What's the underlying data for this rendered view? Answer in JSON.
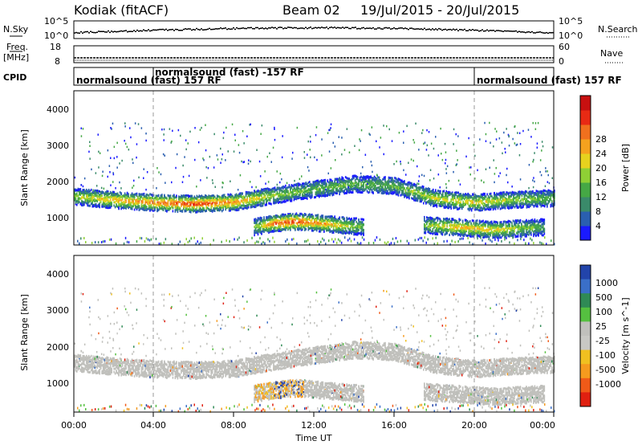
{
  "header": {
    "radar": "Kodiak (fitACF)",
    "beam": "Beam 02",
    "dates": "19/Jul/2015 - 20/Jul/2015"
  },
  "noise_panel": {
    "left_label": "N.Sky",
    "right_label": "N.Search",
    "left_ticks": [
      "10^5",
      "10^0"
    ],
    "right_ticks": [
      "10^5",
      "10^0"
    ]
  },
  "freq_panel": {
    "left_label_1": "Freq.",
    "left_label_2": "[MHz]",
    "right_label": "Nave",
    "left_ticks": [
      "18",
      "8"
    ],
    "right_ticks": [
      "60",
      "0"
    ]
  },
  "cpid_panel": {
    "label": "CPID",
    "segments": [
      {
        "start": 0,
        "end": 4,
        "text": "normalsound (fast) 157 RF"
      },
      {
        "start": 4,
        "end": 20,
        "text": "normalsound (fast) -157 RF"
      },
      {
        "start": 20,
        "end": 24,
        "text": "normalsound (fast) 157 RF"
      }
    ]
  },
  "power_panel": {
    "ylabel": "Slant Range [km]",
    "colorbar_label": "Power [dB]",
    "colorbar_ticks": [
      "28",
      "24",
      "20",
      "16",
      "12",
      "8",
      "4"
    ],
    "colors": [
      "#1a1aff",
      "#2a5fb0",
      "#3a8a6a",
      "#45a845",
      "#8fcf35",
      "#e6d21e",
      "#f5a21e",
      "#f0701e",
      "#e82a14",
      "#c81010"
    ]
  },
  "velocity_panel": {
    "ylabel": "Slant Range [km]",
    "colorbar_label": "Velocity [m s^-1]",
    "colorbar_ticks": [
      "1000",
      "500",
      "100",
      "25",
      "-25",
      "-100",
      "-500",
      "-1000"
    ],
    "colors": [
      "#2244aa",
      "#3a6fc8",
      "#2f8a55",
      "#55c040",
      "#c0c0bc",
      "#c8c8c4",
      "#f0c020",
      "#f59a1e",
      "#f05a18",
      "#e02010"
    ]
  },
  "axes": {
    "y_ticks": [
      "4000",
      "3000",
      "2000",
      "1000"
    ],
    "x_ticks": [
      "00:00",
      "04:00",
      "08:00",
      "12:00",
      "16:00",
      "20:00",
      "00:00"
    ],
    "xlabel": "Time UT"
  },
  "chart_data": {
    "type": "heatmap",
    "x_unit": "hours UT",
    "xlim": [
      0,
      24
    ],
    "ylim": [
      300,
      4600
    ],
    "echo_bands": [
      {
        "name": "main F-region band",
        "t_start": 0,
        "t_end": 24,
        "range_km": [
          [
            0,
            1650
          ],
          [
            2,
            1550
          ],
          [
            4,
            1480
          ],
          [
            6,
            1440
          ],
          [
            8,
            1490
          ],
          [
            10,
            1680
          ],
          [
            12,
            1850
          ],
          [
            14,
            2000
          ],
          [
            16,
            1950
          ],
          [
            18,
            1600
          ],
          [
            20,
            1480
          ],
          [
            22,
            1560
          ],
          [
            24,
            1600
          ]
        ],
        "peak_power_db": [
          [
            0,
            14
          ],
          [
            2,
            20
          ],
          [
            4,
            22
          ],
          [
            6,
            26
          ],
          [
            8,
            22
          ],
          [
            10,
            14
          ],
          [
            12,
            12
          ],
          [
            14,
            12
          ],
          [
            16,
            12
          ],
          [
            18,
            16
          ],
          [
            20,
            18
          ],
          [
            22,
            14
          ],
          [
            24,
            12
          ]
        ]
      },
      {
        "name": "near-range band",
        "t_start": 9,
        "t_end": 14.5,
        "range_km": [
          [
            9,
            800
          ],
          [
            10,
            900
          ],
          [
            11,
            950
          ],
          [
            12,
            920
          ],
          [
            13,
            860
          ],
          [
            14,
            820
          ],
          [
            14.5,
            800
          ]
        ],
        "peak_power_db": [
          [
            9,
            12
          ],
          [
            10,
            24
          ],
          [
            11,
            26
          ],
          [
            12,
            22
          ],
          [
            13,
            18
          ],
          [
            14,
            14
          ],
          [
            14.5,
            12
          ]
        ]
      },
      {
        "name": "late near-range band",
        "t_start": 17.5,
        "t_end": 23.5,
        "range_km": [
          [
            17.5,
            850
          ],
          [
            19,
            800
          ],
          [
            21,
            720
          ],
          [
            23,
            780
          ],
          [
            23.5,
            800
          ]
        ],
        "peak_power_db": [
          [
            17.5,
            12
          ],
          [
            19,
            20
          ],
          [
            21,
            18
          ],
          [
            23,
            12
          ],
          [
            23.5,
            10
          ]
        ]
      }
    ]
  }
}
